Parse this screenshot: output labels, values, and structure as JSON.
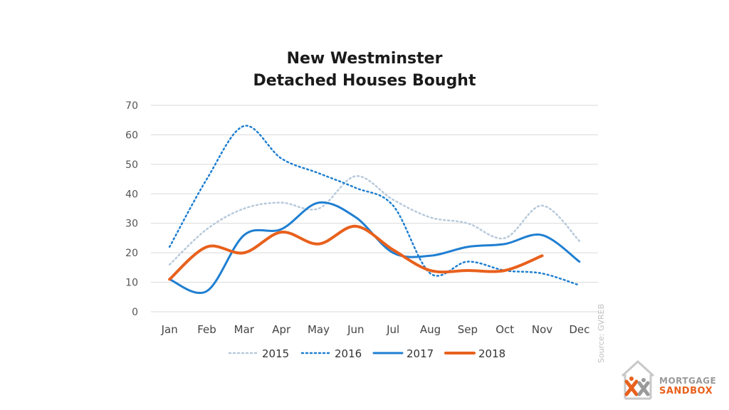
{
  "chart_data": {
    "type": "line",
    "title": [
      "New Westminster",
      "Detached Houses Bought"
    ],
    "categories": [
      "Jan",
      "Feb",
      "Mar",
      "Apr",
      "May",
      "Jun",
      "Jul",
      "Aug",
      "Sep",
      "Oct",
      "Nov",
      "Dec"
    ],
    "ylim": [
      0,
      70
    ],
    "yticks": [
      "0",
      "10",
      "20",
      "30",
      "40",
      "50",
      "60",
      "70"
    ],
    "grid": true,
    "legend": "bottom",
    "series": [
      {
        "name": "2015",
        "color": "#b7c9db",
        "style": "dotted",
        "values": [
          16,
          28,
          35,
          37,
          35,
          46,
          38,
          32,
          30,
          25,
          36,
          24
        ]
      },
      {
        "name": "2016",
        "color": "#1f7fd1",
        "style": "dotted",
        "values": [
          22,
          45,
          63,
          52,
          47,
          42,
          36,
          13,
          17,
          14,
          13,
          9
        ]
      },
      {
        "name": "2017",
        "color": "#1f7fd1",
        "style": "solid",
        "values": [
          11,
          7,
          26,
          28,
          37,
          32,
          20,
          19,
          22,
          23,
          26,
          17
        ]
      },
      {
        "name": "2018",
        "color": "#e8601c",
        "style": "solid-thick",
        "values": [
          11,
          22,
          20,
          27,
          23,
          29,
          21,
          14,
          14,
          14,
          19,
          null
        ]
      }
    ]
  },
  "source_label": "Source: GVREB",
  "logo": {
    "top": "MORTGAGE",
    "bottom": "SANDBOX",
    "icon": "house-x-logo-icon"
  }
}
